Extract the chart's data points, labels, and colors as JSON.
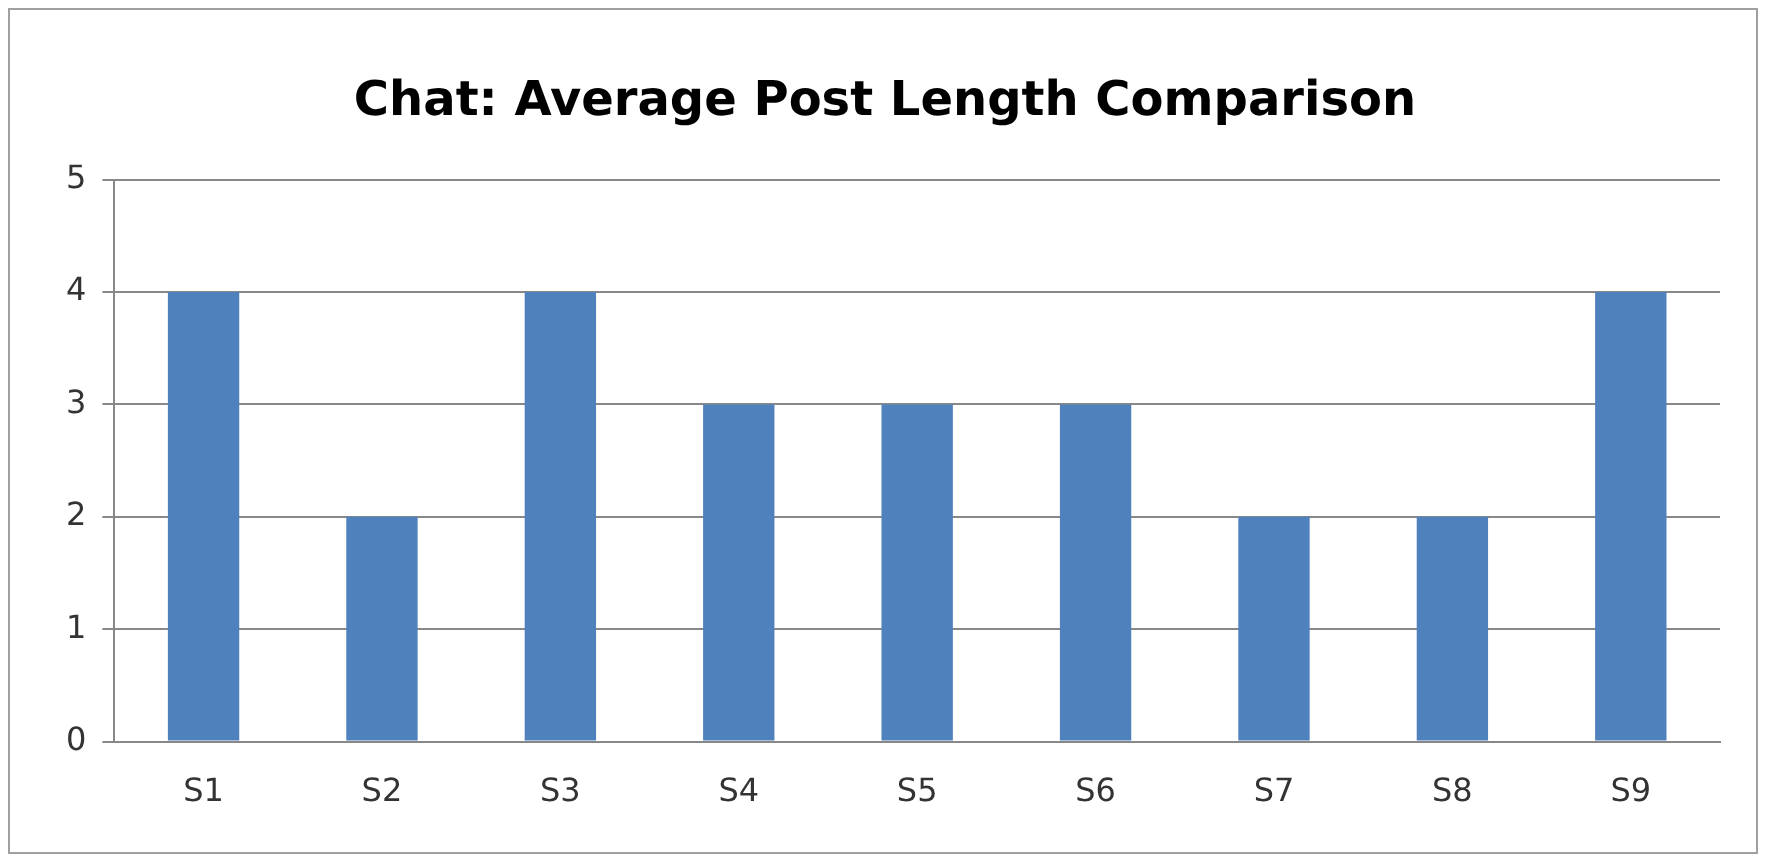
{
  "chart_data": {
    "type": "bar",
    "title": "Chat: Average Post Length Comparison",
    "categories": [
      "S1",
      "S2",
      "S3",
      "S4",
      "S5",
      "S6",
      "S7",
      "S8",
      "S9"
    ],
    "values": [
      4,
      2,
      4,
      3,
      3,
      3,
      2,
      2,
      4
    ],
    "color": "#4f81bd",
    "ylim": [
      0,
      5
    ],
    "yticks": [
      0,
      1,
      2,
      3,
      4,
      5
    ],
    "grid": "y",
    "legend": false
  }
}
